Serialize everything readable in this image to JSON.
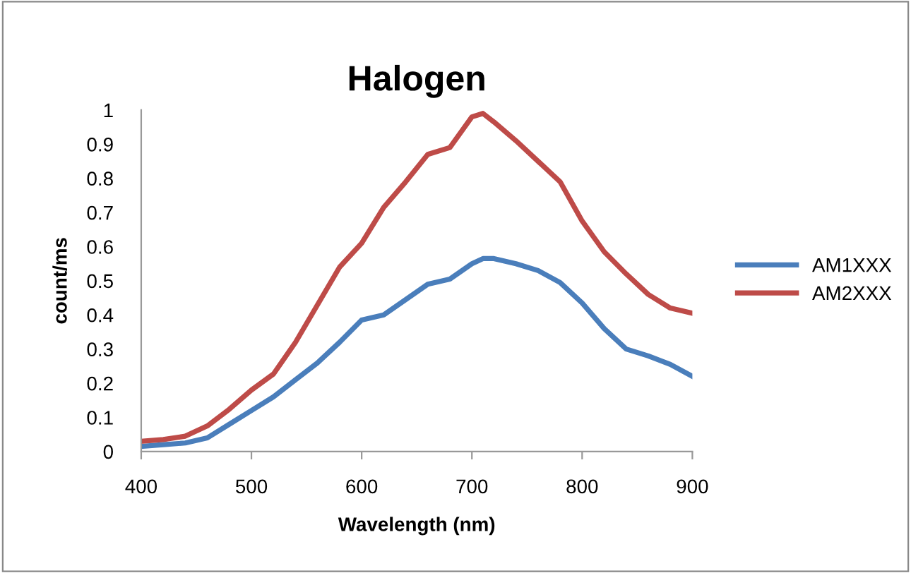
{
  "chart_data": {
    "type": "line",
    "title": "Halogen",
    "xlabel": "Wavelength (nm)",
    "ylabel": "count/ms",
    "x": [
      400,
      420,
      440,
      460,
      480,
      500,
      520,
      540,
      560,
      580,
      600,
      620,
      640,
      660,
      680,
      700,
      710,
      720,
      740,
      760,
      780,
      800,
      820,
      840,
      860,
      880,
      900
    ],
    "series": [
      {
        "name": "AM1XXX",
        "color": "#4a7ebb",
        "values": [
          0.015,
          0.02,
          0.025,
          0.04,
          0.08,
          0.12,
          0.16,
          0.21,
          0.26,
          0.32,
          0.385,
          0.4,
          0.445,
          0.49,
          0.505,
          0.55,
          0.565,
          0.565,
          0.55,
          0.53,
          0.495,
          0.435,
          0.36,
          0.3,
          0.28,
          0.255,
          0.22
        ]
      },
      {
        "name": "AM2XXX",
        "color": "#be4b48",
        "values": [
          0.03,
          0.035,
          0.045,
          0.075,
          0.124,
          0.18,
          0.227,
          0.32,
          0.43,
          0.54,
          0.61,
          0.715,
          0.79,
          0.87,
          0.89,
          0.98,
          0.99,
          0.965,
          0.91,
          0.85,
          0.79,
          0.675,
          0.585,
          0.52,
          0.46,
          0.42,
          0.405
        ]
      }
    ],
    "xlim": [
      400,
      900
    ],
    "xticks": [
      400,
      500,
      600,
      700,
      800,
      900
    ],
    "ylim": [
      0,
      1
    ],
    "yticks": [
      0,
      0.1,
      0.2,
      0.3,
      0.4,
      0.5,
      0.6,
      0.7,
      0.8,
      0.9,
      1
    ],
    "grid": false,
    "legend": "right",
    "marker": "none",
    "line_style": "solid"
  }
}
